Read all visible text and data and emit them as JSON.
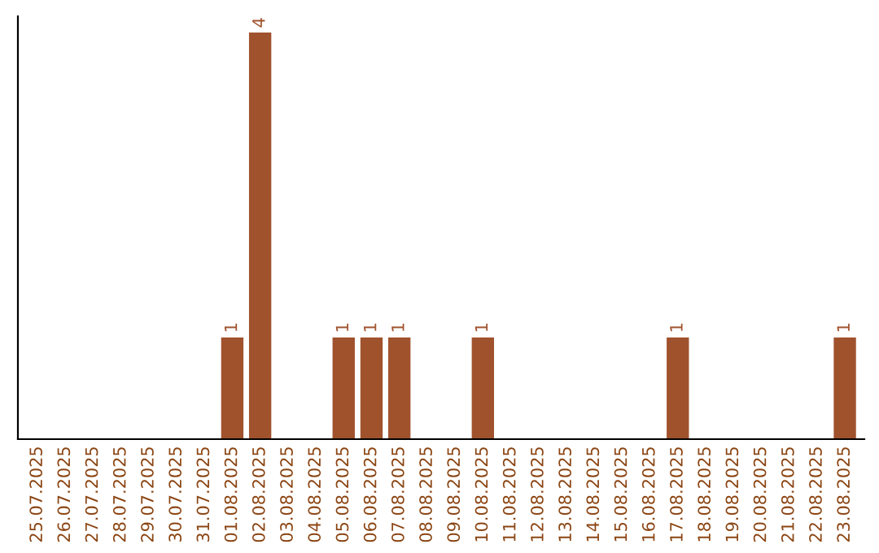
{
  "chart_data": {
    "type": "bar",
    "categories": [
      "25.07.2025",
      "26.07.2025",
      "27.07.2025",
      "28.07.2025",
      "29.07.2025",
      "30.07.2025",
      "31.07.2025",
      "01.08.2025",
      "02.08.2025",
      "03.08.2025",
      "04.08.2025",
      "05.08.2025",
      "06.08.2025",
      "07.08.2025",
      "08.08.2025",
      "09.08.2025",
      "10.08.2025",
      "11.08.2025",
      "12.08.2025",
      "13.08.2025",
      "14.08.2025",
      "15.08.2025",
      "16.08.2025",
      "17.08.2025",
      "18.08.2025",
      "19.08.2025",
      "20.08.2025",
      "21.08.2025",
      "22.08.2025",
      "23.08.2025"
    ],
    "values": [
      0,
      0,
      0,
      0,
      0,
      0,
      0,
      1,
      4,
      0,
      0,
      1,
      1,
      1,
      0,
      0,
      1,
      0,
      0,
      0,
      0,
      0,
      0,
      1,
      0,
      0,
      0,
      0,
      0,
      1
    ],
    "color": "#a0522d",
    "value_labels": [
      null,
      null,
      null,
      null,
      null,
      null,
      null,
      "1",
      "4",
      null,
      null,
      "1",
      "1",
      "1",
      null,
      null,
      "1",
      null,
      null,
      null,
      null,
      null,
      null,
      "1",
      null,
      null,
      null,
      null,
      null,
      "1"
    ],
    "ylim": [
      0,
      4.16
    ],
    "tick_labels": "x",
    "grid": false,
    "legend": false
  }
}
